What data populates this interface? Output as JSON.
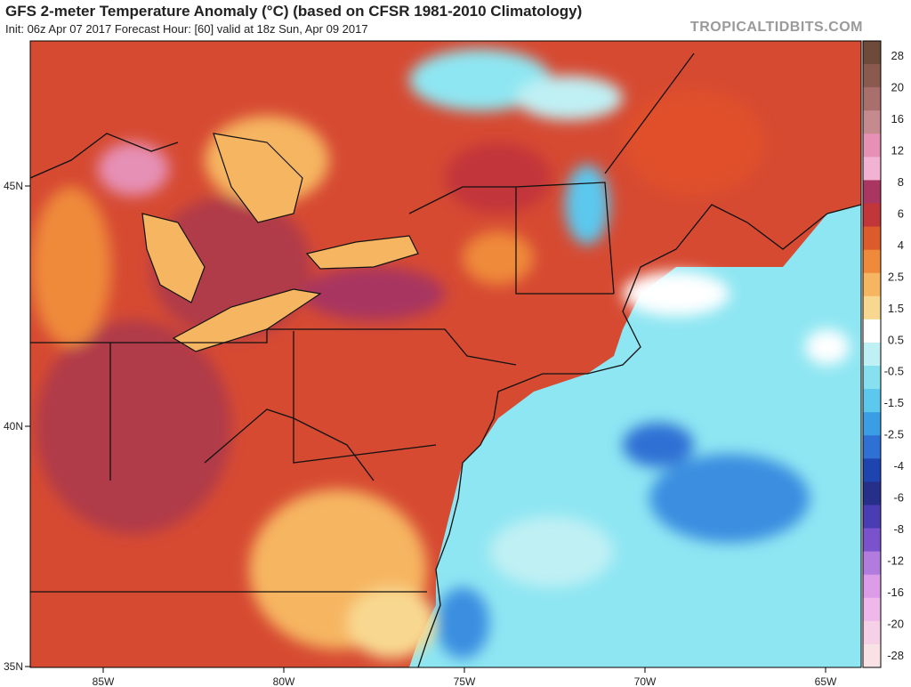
{
  "title": "GFS 2-meter Temperature Anomaly (°C) (based on CFSR 1981-2010 Climatology)",
  "subtitle": "Init: 06z Apr 07 2017   Forecast Hour: [60]   valid at 18z Sun, Apr 09 2017",
  "brand": "TROPICALTIDBITS.COM",
  "axes": {
    "lon_labels": [
      "85W",
      "80W",
      "75W",
      "70W",
      "65W"
    ],
    "lat_labels": [
      "45N",
      "40N",
      "35N"
    ]
  },
  "colorbar": {
    "labels": [
      "28",
      "20",
      "16",
      "12",
      "8",
      "6",
      "4",
      "2.5",
      "1.5",
      "0.5",
      "-0.5",
      "-1.5",
      "-2.5",
      "-4",
      "-6",
      "-8",
      "-12",
      "-16",
      "-20",
      "-28"
    ],
    "colors": [
      "#6e4a3a",
      "#8a5a4e",
      "#a86f6c",
      "#c48a8e",
      "#e690b6",
      "#f2b3d2",
      "#a83660",
      "#c2363a",
      "#dd5a2a",
      "#ef8a3a",
      "#f6b560",
      "#f8d890",
      "#ffffff",
      "#bff0f4",
      "#86e0f0",
      "#5cc8ee",
      "#3a9ee4",
      "#2e70d4",
      "#1e44b0",
      "#26308a",
      "#4a3cb2",
      "#7a52cc",
      "#b27cde",
      "#dc9ce8",
      "#f0b8ea",
      "#f6d0e6",
      "#f8e2e6"
    ]
  },
  "legend_colors": {
    "warm_strong": "#b03a48",
    "warm": "#e0502c",
    "neutral": "#ffffff",
    "cool": "#8ee6f2",
    "cool_strong": "#3a8ee0"
  }
}
